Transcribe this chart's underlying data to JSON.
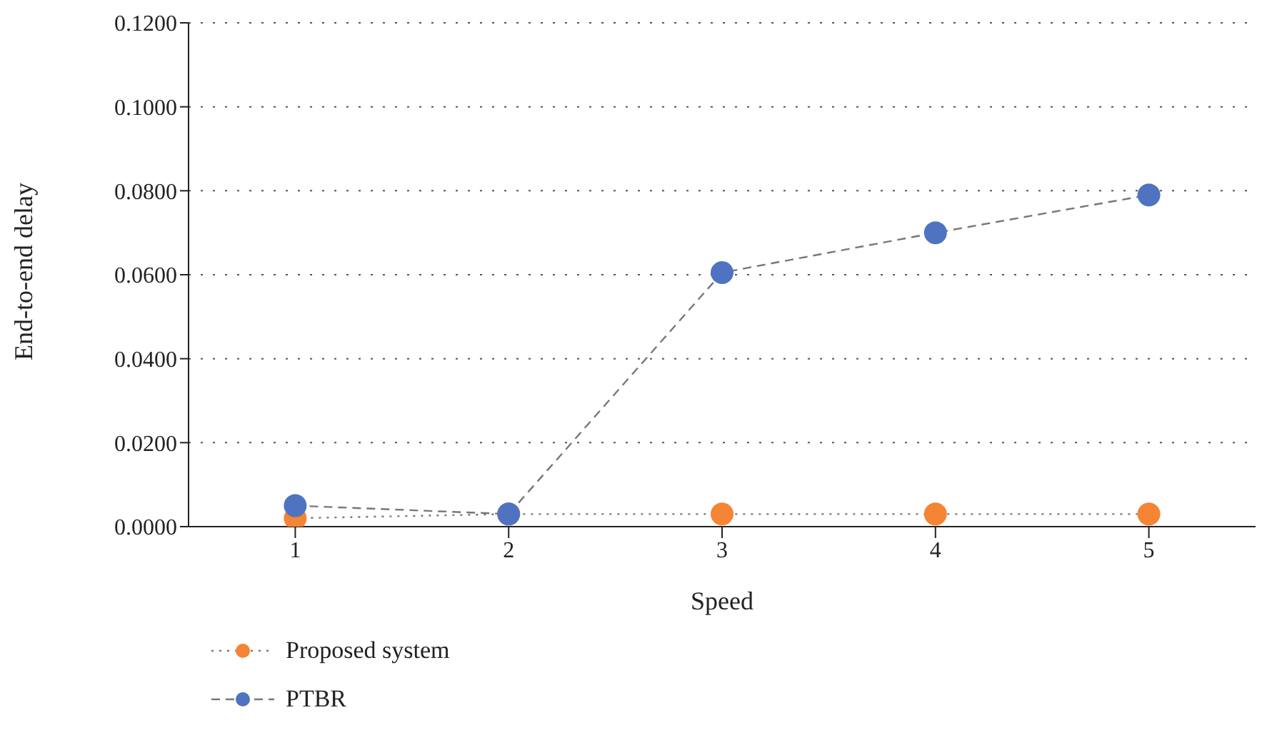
{
  "chart_data": {
    "type": "line",
    "xlabel": "Speed",
    "ylabel": "End-to-end delay",
    "categories": [
      "1",
      "2",
      "3",
      "4",
      "5"
    ],
    "series": [
      {
        "name": "Proposed system",
        "color": "#f58434",
        "values": [
          0.002,
          0.003,
          0.003,
          0.003,
          0.003
        ],
        "line_style": "dotted"
      },
      {
        "name": "PTBR",
        "color": "#4f73c0",
        "values": [
          0.005,
          0.003,
          0.0605,
          0.07,
          0.079
        ],
        "line_style": "dashed"
      }
    ],
    "ylim": [
      0,
      0.12
    ],
    "yticks": [
      {
        "value": 0,
        "label": "0.0000"
      },
      {
        "value": 0.02,
        "label": "0.0200"
      },
      {
        "value": 0.04,
        "label": "0.0400"
      },
      {
        "value": 0.06,
        "label": "0.0600"
      },
      {
        "value": 0.08,
        "label": "0.0800"
      },
      {
        "value": 0.1,
        "label": "0.1000"
      },
      {
        "value": 0.12,
        "label": "0.1200"
      }
    ],
    "grid": "y",
    "legend": "bottom",
    "marker": "circle"
  }
}
